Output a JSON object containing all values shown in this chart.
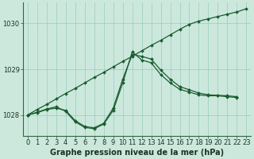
{
  "background_color": "#cce8dd",
  "grid_color": "#99ccbb",
  "line_color": "#1a5c30",
  "xlabel": "Graphe pression niveau de la mer (hPa)",
  "xlabel_fontsize": 7,
  "tick_fontsize": 6,
  "ylim": [
    1027.55,
    1030.45
  ],
  "xlim": [
    -0.5,
    23.5
  ],
  "yticks": [
    1028,
    1029,
    1030
  ],
  "xticks": [
    0,
    1,
    2,
    3,
    4,
    5,
    6,
    7,
    8,
    9,
    10,
    11,
    12,
    13,
    14,
    15,
    16,
    17,
    18,
    19,
    20,
    21,
    22,
    23
  ],
  "series1_x": [
    0,
    1,
    2,
    3,
    4,
    5,
    6,
    7,
    8,
    9,
    10,
    11,
    12,
    13,
    14,
    15,
    16,
    17,
    18,
    19,
    20,
    21,
    22,
    23
  ],
  "series1_y": [
    1028.0,
    1028.12,
    1028.23,
    1028.35,
    1028.47,
    1028.58,
    1028.7,
    1028.82,
    1028.93,
    1029.05,
    1029.17,
    1029.28,
    1029.4,
    1029.52,
    1029.63,
    1029.75,
    1029.87,
    1029.98,
    1030.05,
    1030.1,
    1030.15,
    1030.2,
    1030.25,
    1030.32
  ],
  "series2_x": [
    0,
    1,
    2,
    3,
    4,
    5,
    6,
    7,
    8,
    9,
    10,
    11,
    12,
    13,
    14,
    15,
    16,
    17,
    18,
    19,
    20,
    21,
    22
  ],
  "series2_y": [
    1028.0,
    1028.05,
    1028.12,
    1028.15,
    1028.1,
    1027.88,
    1027.75,
    1027.72,
    1027.82,
    1028.15,
    1028.78,
    1029.32,
    1029.28,
    1029.22,
    1028.98,
    1028.78,
    1028.62,
    1028.55,
    1028.48,
    1028.44,
    1028.43,
    1028.42,
    1028.4
  ],
  "series3_x": [
    0,
    1,
    2,
    3,
    4,
    5,
    6,
    7,
    8,
    9,
    10,
    11,
    12,
    13,
    14,
    15,
    16,
    17,
    18,
    19,
    20,
    21,
    22
  ],
  "series3_y": [
    1028.0,
    1028.06,
    1028.13,
    1028.18,
    1028.08,
    1027.85,
    1027.73,
    1027.7,
    1027.8,
    1028.1,
    1028.7,
    1029.38,
    1029.2,
    1029.14,
    1028.88,
    1028.7,
    1028.56,
    1028.5,
    1028.44,
    1028.42,
    1028.42,
    1028.4,
    1028.38
  ]
}
